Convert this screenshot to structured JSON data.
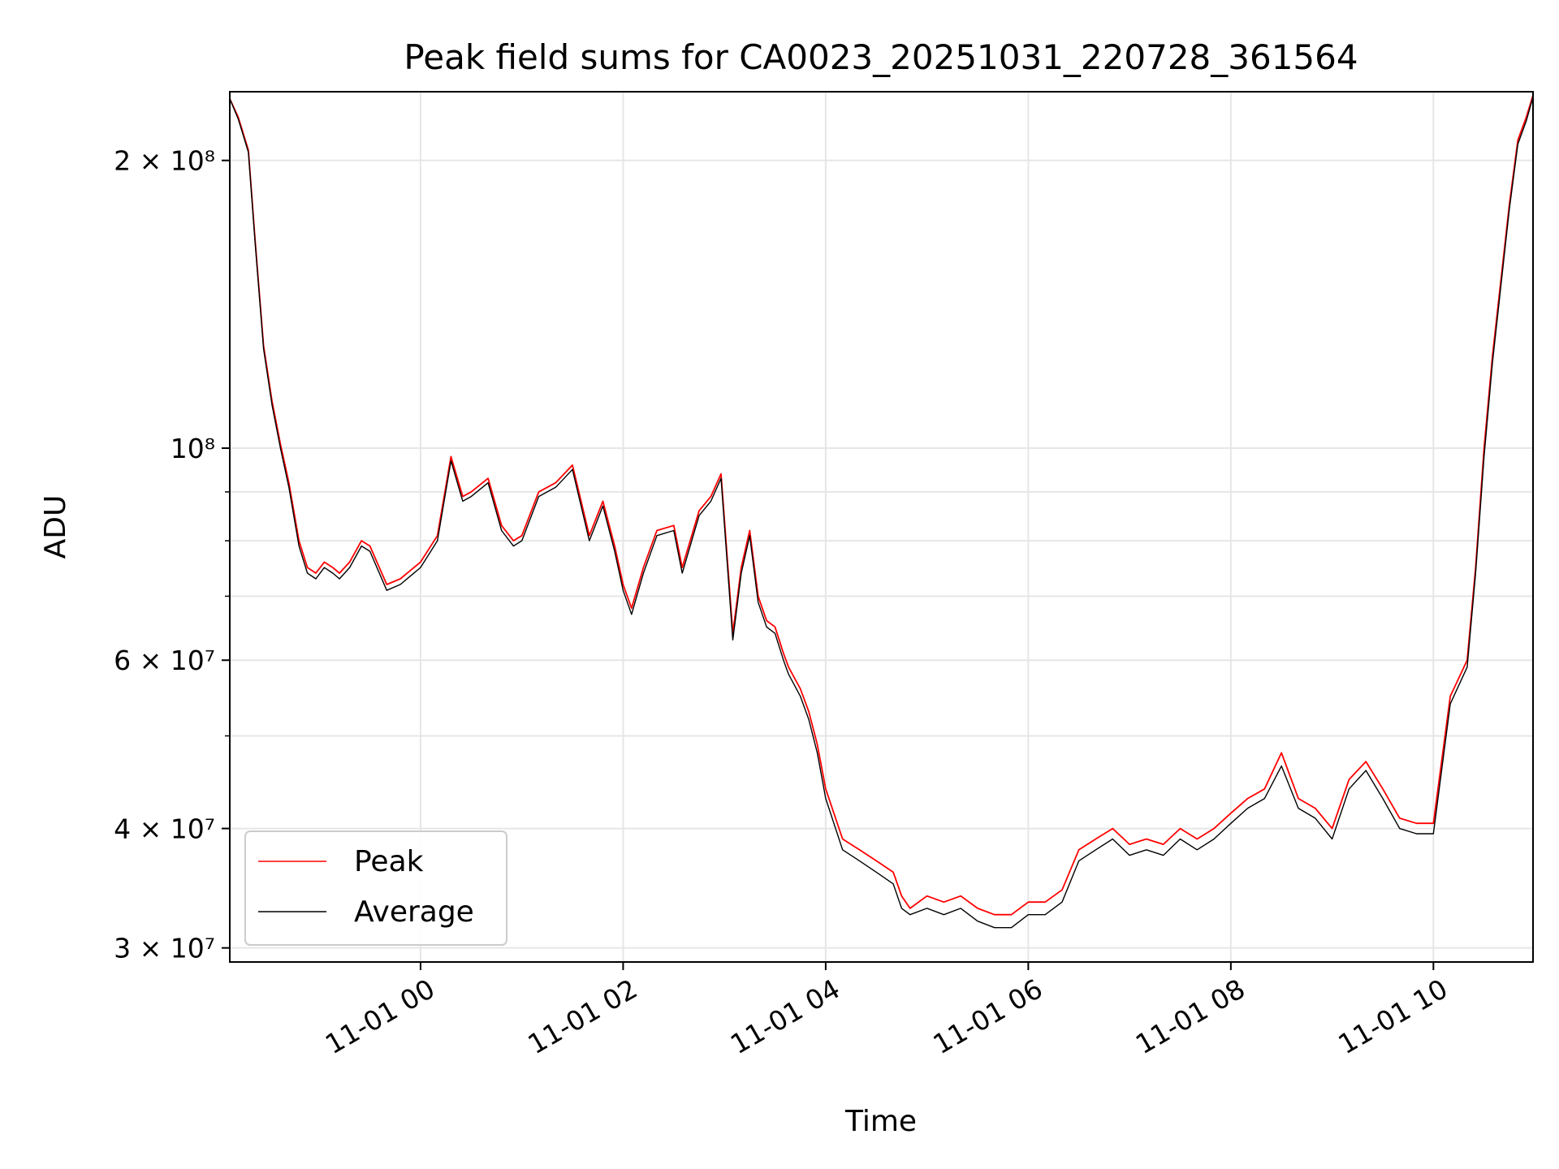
{
  "chart_data": {
    "type": "line",
    "title": "Peak field sums for CA0023_20251031_220728_361564",
    "xlabel": "Time",
    "ylabel": "ADU",
    "yscale": "log",
    "grid": true,
    "legend_position": "bottom-left",
    "x_range": [
      "2025-10-31 22:07",
      "2025-11-01 10:59"
    ],
    "ylim": [
      29000000,
      236000000
    ],
    "x_ticks": [
      {
        "t": "2025-11-01 00:00",
        "label": "11-01 00"
      },
      {
        "t": "2025-11-01 02:00",
        "label": "11-01 02"
      },
      {
        "t": "2025-11-01 04:00",
        "label": "11-01 04"
      },
      {
        "t": "2025-11-01 06:00",
        "label": "11-01 06"
      },
      {
        "t": "2025-11-01 08:00",
        "label": "11-01 08"
      },
      {
        "t": "2025-11-01 10:00",
        "label": "11-01 10"
      }
    ],
    "y_ticks": [
      {
        "value": 30000000,
        "label": "3 × 10⁷"
      },
      {
        "value": 40000000,
        "label": "4 × 10⁷"
      },
      {
        "value": 60000000,
        "label": "6 × 10⁷"
      },
      {
        "value": 100000000,
        "label": "10⁸"
      },
      {
        "value": 200000000,
        "label": "2 × 10⁸"
      }
    ],
    "y_minor_ticks": [
      50000000,
      70000000,
      80000000,
      90000000
    ],
    "x": [
      "2025-10-31 22:07",
      "2025-10-31 22:12",
      "2025-10-31 22:18",
      "2025-10-31 22:22",
      "2025-10-31 22:27",
      "2025-10-31 22:32",
      "2025-10-31 22:37",
      "2025-10-31 22:42",
      "2025-10-31 22:48",
      "2025-10-31 22:53",
      "2025-10-31 22:58",
      "2025-10-31 23:03",
      "2025-10-31 23:08",
      "2025-10-31 23:12",
      "2025-10-31 23:18",
      "2025-10-31 23:25",
      "2025-10-31 23:30",
      "2025-10-31 23:40",
      "2025-10-31 23:48",
      "2025-11-01 00:00",
      "2025-11-01 00:10",
      "2025-11-01 00:18",
      "2025-11-01 00:25",
      "2025-11-01 00:30",
      "2025-11-01 00:40",
      "2025-11-01 00:48",
      "2025-11-01 00:55",
      "2025-11-01 01:00",
      "2025-11-01 01:10",
      "2025-11-01 01:20",
      "2025-11-01 01:30",
      "2025-11-01 01:40",
      "2025-11-01 01:48",
      "2025-11-01 01:55",
      "2025-11-01 02:00",
      "2025-11-01 02:05",
      "2025-11-01 02:12",
      "2025-11-01 02:20",
      "2025-11-01 02:30",
      "2025-11-01 02:35",
      "2025-11-01 02:45",
      "2025-11-01 02:52",
      "2025-11-01 02:58",
      "2025-11-01 03:05",
      "2025-11-01 03:10",
      "2025-11-01 03:15",
      "2025-11-01 03:20",
      "2025-11-01 03:25",
      "2025-11-01 03:30",
      "2025-11-01 03:35",
      "2025-11-01 03:38",
      "2025-11-01 03:45",
      "2025-11-01 03:50",
      "2025-11-01 03:55",
      "2025-11-01 04:00",
      "2025-11-01 04:10",
      "2025-11-01 04:20",
      "2025-11-01 04:30",
      "2025-11-01 04:40",
      "2025-11-01 04:45",
      "2025-11-01 04:50",
      "2025-11-01 05:00",
      "2025-11-01 05:10",
      "2025-11-01 05:20",
      "2025-11-01 05:30",
      "2025-11-01 05:40",
      "2025-11-01 05:50",
      "2025-11-01 06:00",
      "2025-11-01 06:10",
      "2025-11-01 06:20",
      "2025-11-01 06:30",
      "2025-11-01 06:40",
      "2025-11-01 06:50",
      "2025-11-01 07:00",
      "2025-11-01 07:10",
      "2025-11-01 07:20",
      "2025-11-01 07:30",
      "2025-11-01 07:40",
      "2025-11-01 07:50",
      "2025-11-01 08:00",
      "2025-11-01 08:10",
      "2025-11-01 08:20",
      "2025-11-01 08:30",
      "2025-11-01 08:40",
      "2025-11-01 08:50",
      "2025-11-01 09:00",
      "2025-11-01 09:10",
      "2025-11-01 09:20",
      "2025-11-01 09:30",
      "2025-11-01 09:40",
      "2025-11-01 09:50",
      "2025-11-01 10:00",
      "2025-11-01 10:10",
      "2025-11-01 10:20",
      "2025-11-01 10:25",
      "2025-11-01 10:30",
      "2025-11-01 10:35",
      "2025-11-01 10:40",
      "2025-11-01 10:45",
      "2025-11-01 10:50",
      "2025-11-01 10:55",
      "2025-11-01 10:59"
    ],
    "series": [
      {
        "name": "Peak",
        "color": "#ff0000",
        "values": [
          232000000,
          222000000,
          205000000,
          165000000,
          128000000,
          112000000,
          101000000,
          92000000,
          80000000,
          75000000,
          74000000,
          76000000,
          75000000,
          74000000,
          76000000,
          80000000,
          79000000,
          72000000,
          73000000,
          76000000,
          81000000,
          98000000,
          89000000,
          90000000,
          93000000,
          83000000,
          80000000,
          81000000,
          90000000,
          92000000,
          96000000,
          81000000,
          88000000,
          79000000,
          72000000,
          68000000,
          75000000,
          82000000,
          83000000,
          75000000,
          86000000,
          89000000,
          94000000,
          64000000,
          75000000,
          82000000,
          70000000,
          66000000,
          65000000,
          61000000,
          59000000,
          56000000,
          53000000,
          49000000,
          44000000,
          39000000,
          38000000,
          37000000,
          36000000,
          34000000,
          33000000,
          34000000,
          33500000,
          34000000,
          33000000,
          32500000,
          32500000,
          33500000,
          33500000,
          34500000,
          38000000,
          39000000,
          40000000,
          38500000,
          39000000,
          38500000,
          40000000,
          39000000,
          40000000,
          41500000,
          43000000,
          44000000,
          48000000,
          43000000,
          42000000,
          40000000,
          45000000,
          47000000,
          44000000,
          41000000,
          40500000,
          40500000,
          55000000,
          60000000,
          75000000,
          100000000,
          125000000,
          150000000,
          180000000,
          210000000,
          222000000,
          234000000
        ]
      },
      {
        "name": "Average",
        "color": "#000000",
        "values": [
          232000000,
          221000000,
          204000000,
          164000000,
          127000000,
          111000000,
          100000000,
          91000000,
          79000000,
          74000000,
          73000000,
          75000000,
          74000000,
          73000000,
          75000000,
          79000000,
          78000000,
          71000000,
          72000000,
          75000000,
          80000000,
          97000000,
          88000000,
          89000000,
          92000000,
          82000000,
          79000000,
          80000000,
          89000000,
          91000000,
          95000000,
          80000000,
          87000000,
          78000000,
          71000000,
          67000000,
          74000000,
          81000000,
          82000000,
          74000000,
          85000000,
          88000000,
          93000000,
          63000000,
          74000000,
          81000000,
          69000000,
          65000000,
          64000000,
          60000000,
          58000000,
          55000000,
          52000000,
          48000000,
          43000000,
          38000000,
          37000000,
          36000000,
          35000000,
          33000000,
          32500000,
          33000000,
          32500000,
          33000000,
          32000000,
          31500000,
          31500000,
          32500000,
          32500000,
          33500000,
          37000000,
          38000000,
          39000000,
          37500000,
          38000000,
          37500000,
          39000000,
          38000000,
          39000000,
          40500000,
          42000000,
          43000000,
          46500000,
          42000000,
          41000000,
          39000000,
          44000000,
          46000000,
          43000000,
          40000000,
          39500000,
          39500000,
          54000000,
          59000000,
          74000000,
          98000000,
          123000000,
          148000000,
          178000000,
          208000000,
          220000000,
          233000000
        ]
      }
    ]
  }
}
